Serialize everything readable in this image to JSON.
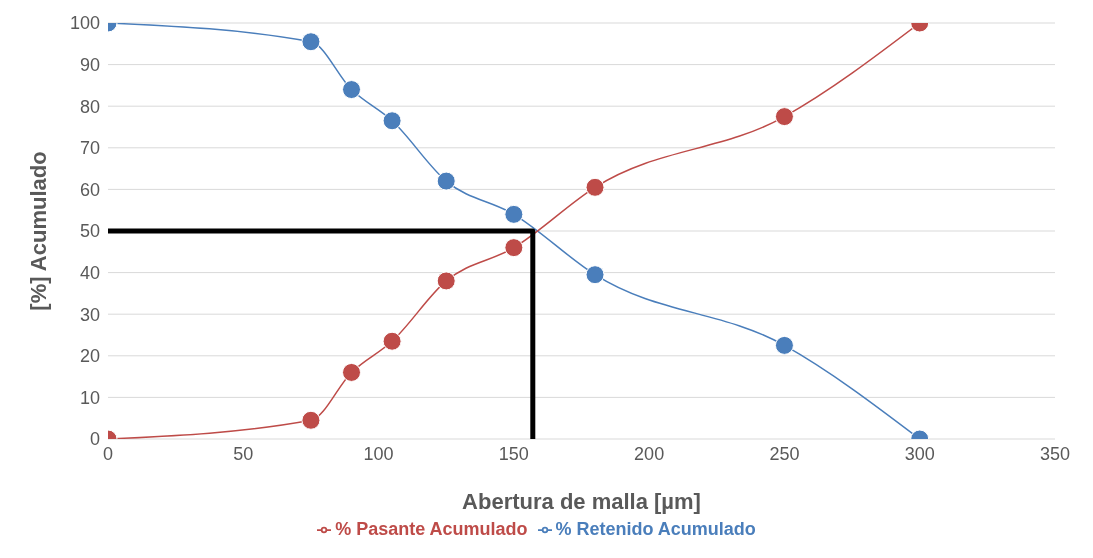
{
  "chart_data": {
    "type": "line",
    "xlabel": "Abertura de malla [µm]",
    "ylabel": "[%] Acumulado",
    "xlim": [
      0,
      350
    ],
    "xticks": [
      0,
      50,
      100,
      150,
      200,
      250,
      300,
      350
    ],
    "ylim": [
      0,
      100
    ],
    "yticks": [
      0,
      10,
      20,
      30,
      40,
      50,
      60,
      70,
      80,
      90,
      100
    ],
    "grid": "y",
    "legend": "bottom",
    "marker": "circle",
    "line_style": "solid",
    "series": [
      {
        "name": "% Retenido Acumulado",
        "color": "#4a7ebb",
        "x": [
          0,
          75,
          90,
          105,
          125,
          150,
          180,
          250,
          300
        ],
        "values": [
          100,
          95.5,
          84,
          76.5,
          62,
          54,
          39.5,
          22.5,
          0
        ]
      },
      {
        "name": "% Pasante Acumulado",
        "color": "#be4b48",
        "x": [
          0,
          75,
          90,
          105,
          125,
          150,
          180,
          250,
          300
        ],
        "values": [
          0,
          4.5,
          16,
          23.5,
          38,
          46,
          60.5,
          77.5,
          100
        ]
      },
      {
        "color": "#000000",
        "marker": "none",
        "x": [
          0,
          157,
          157
        ],
        "values": [
          50,
          50,
          0
        ]
      }
    ]
  }
}
